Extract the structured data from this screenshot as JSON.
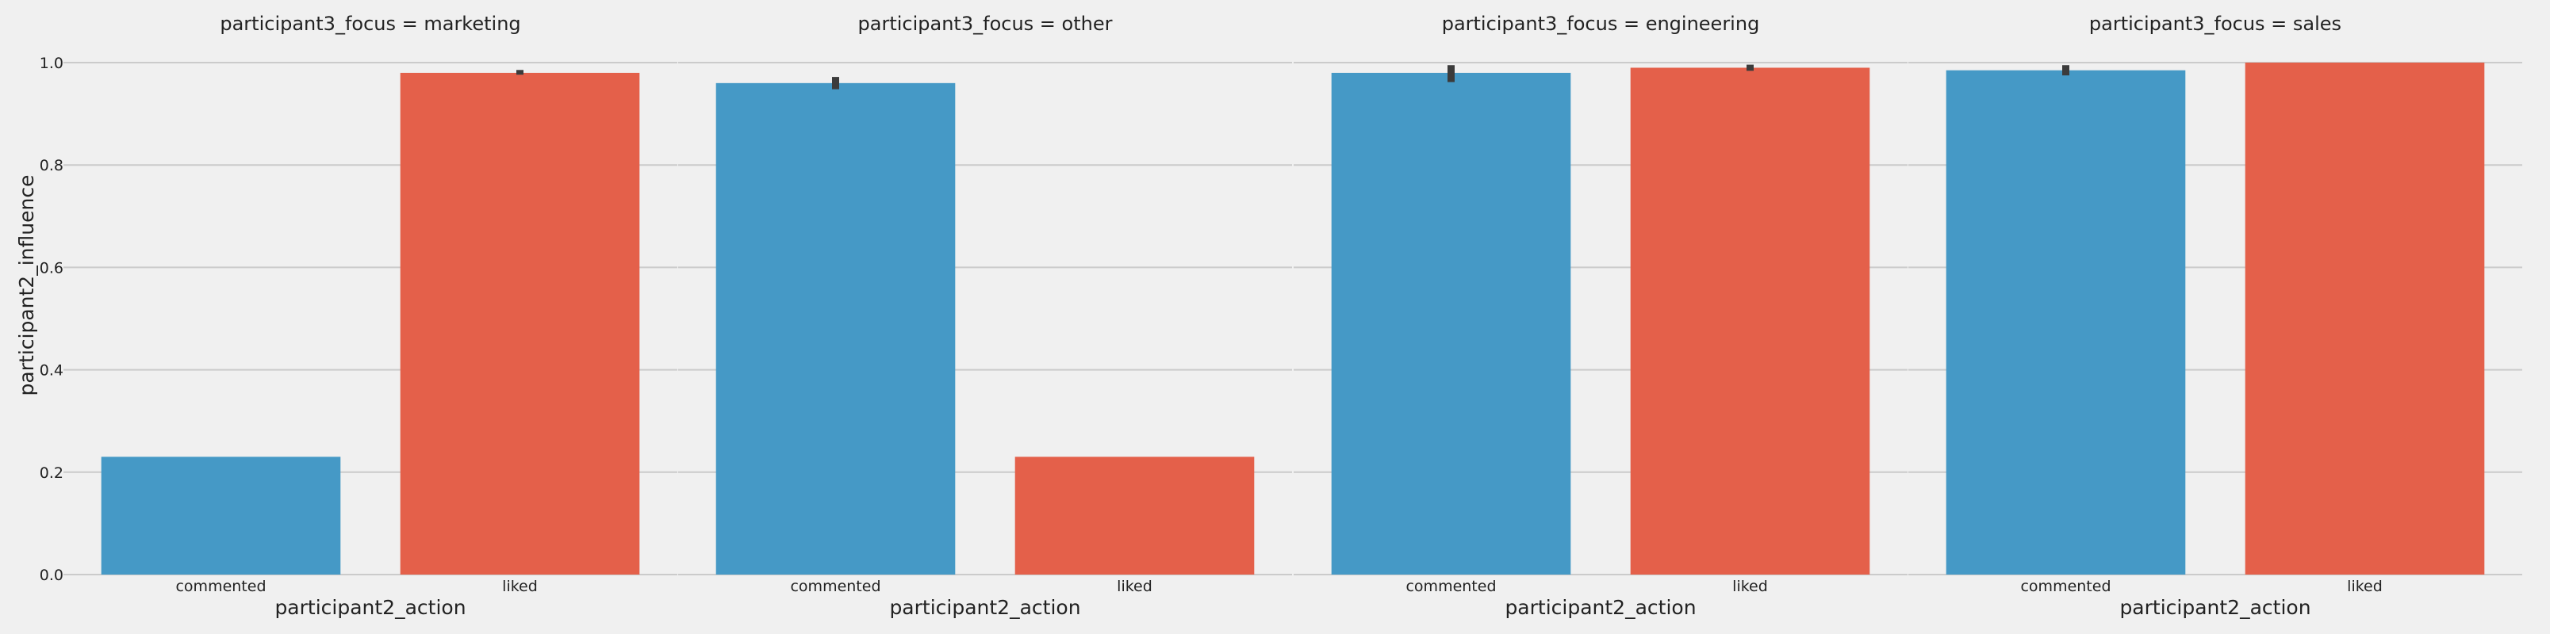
{
  "chart_data": {
    "type": "bar",
    "xlabel": "participant2_action",
    "ylabel": "participant2_influence",
    "ylim": [
      0,
      1.0
    ],
    "yticks": [
      "0.0",
      "0.2",
      "0.4",
      "0.6",
      "0.8",
      "1.0"
    ],
    "grid": true,
    "categories": [
      "commented",
      "liked"
    ],
    "colors": {
      "commented": "#4599c6",
      "liked": "#e4604a"
    },
    "panels": [
      {
        "title": "participant3_focus = marketing",
        "values": [
          0.23,
          0.98
        ],
        "errors": [
          null,
          [
            0.978,
            0.984
          ]
        ]
      },
      {
        "title": "participant3_focus = other",
        "values": [
          0.96,
          0.23
        ],
        "errors": [
          [
            0.948,
            0.972
          ],
          null
        ]
      },
      {
        "title": "participant3_focus = engineering",
        "values": [
          0.98,
          0.99
        ],
        "errors": [
          [
            0.962,
            0.995
          ],
          [
            0.984,
            0.996
          ]
        ]
      },
      {
        "title": "participant3_focus = sales",
        "values": [
          0.985,
          1.0
        ],
        "errors": [
          [
            0.975,
            0.995
          ],
          null
        ]
      }
    ]
  }
}
